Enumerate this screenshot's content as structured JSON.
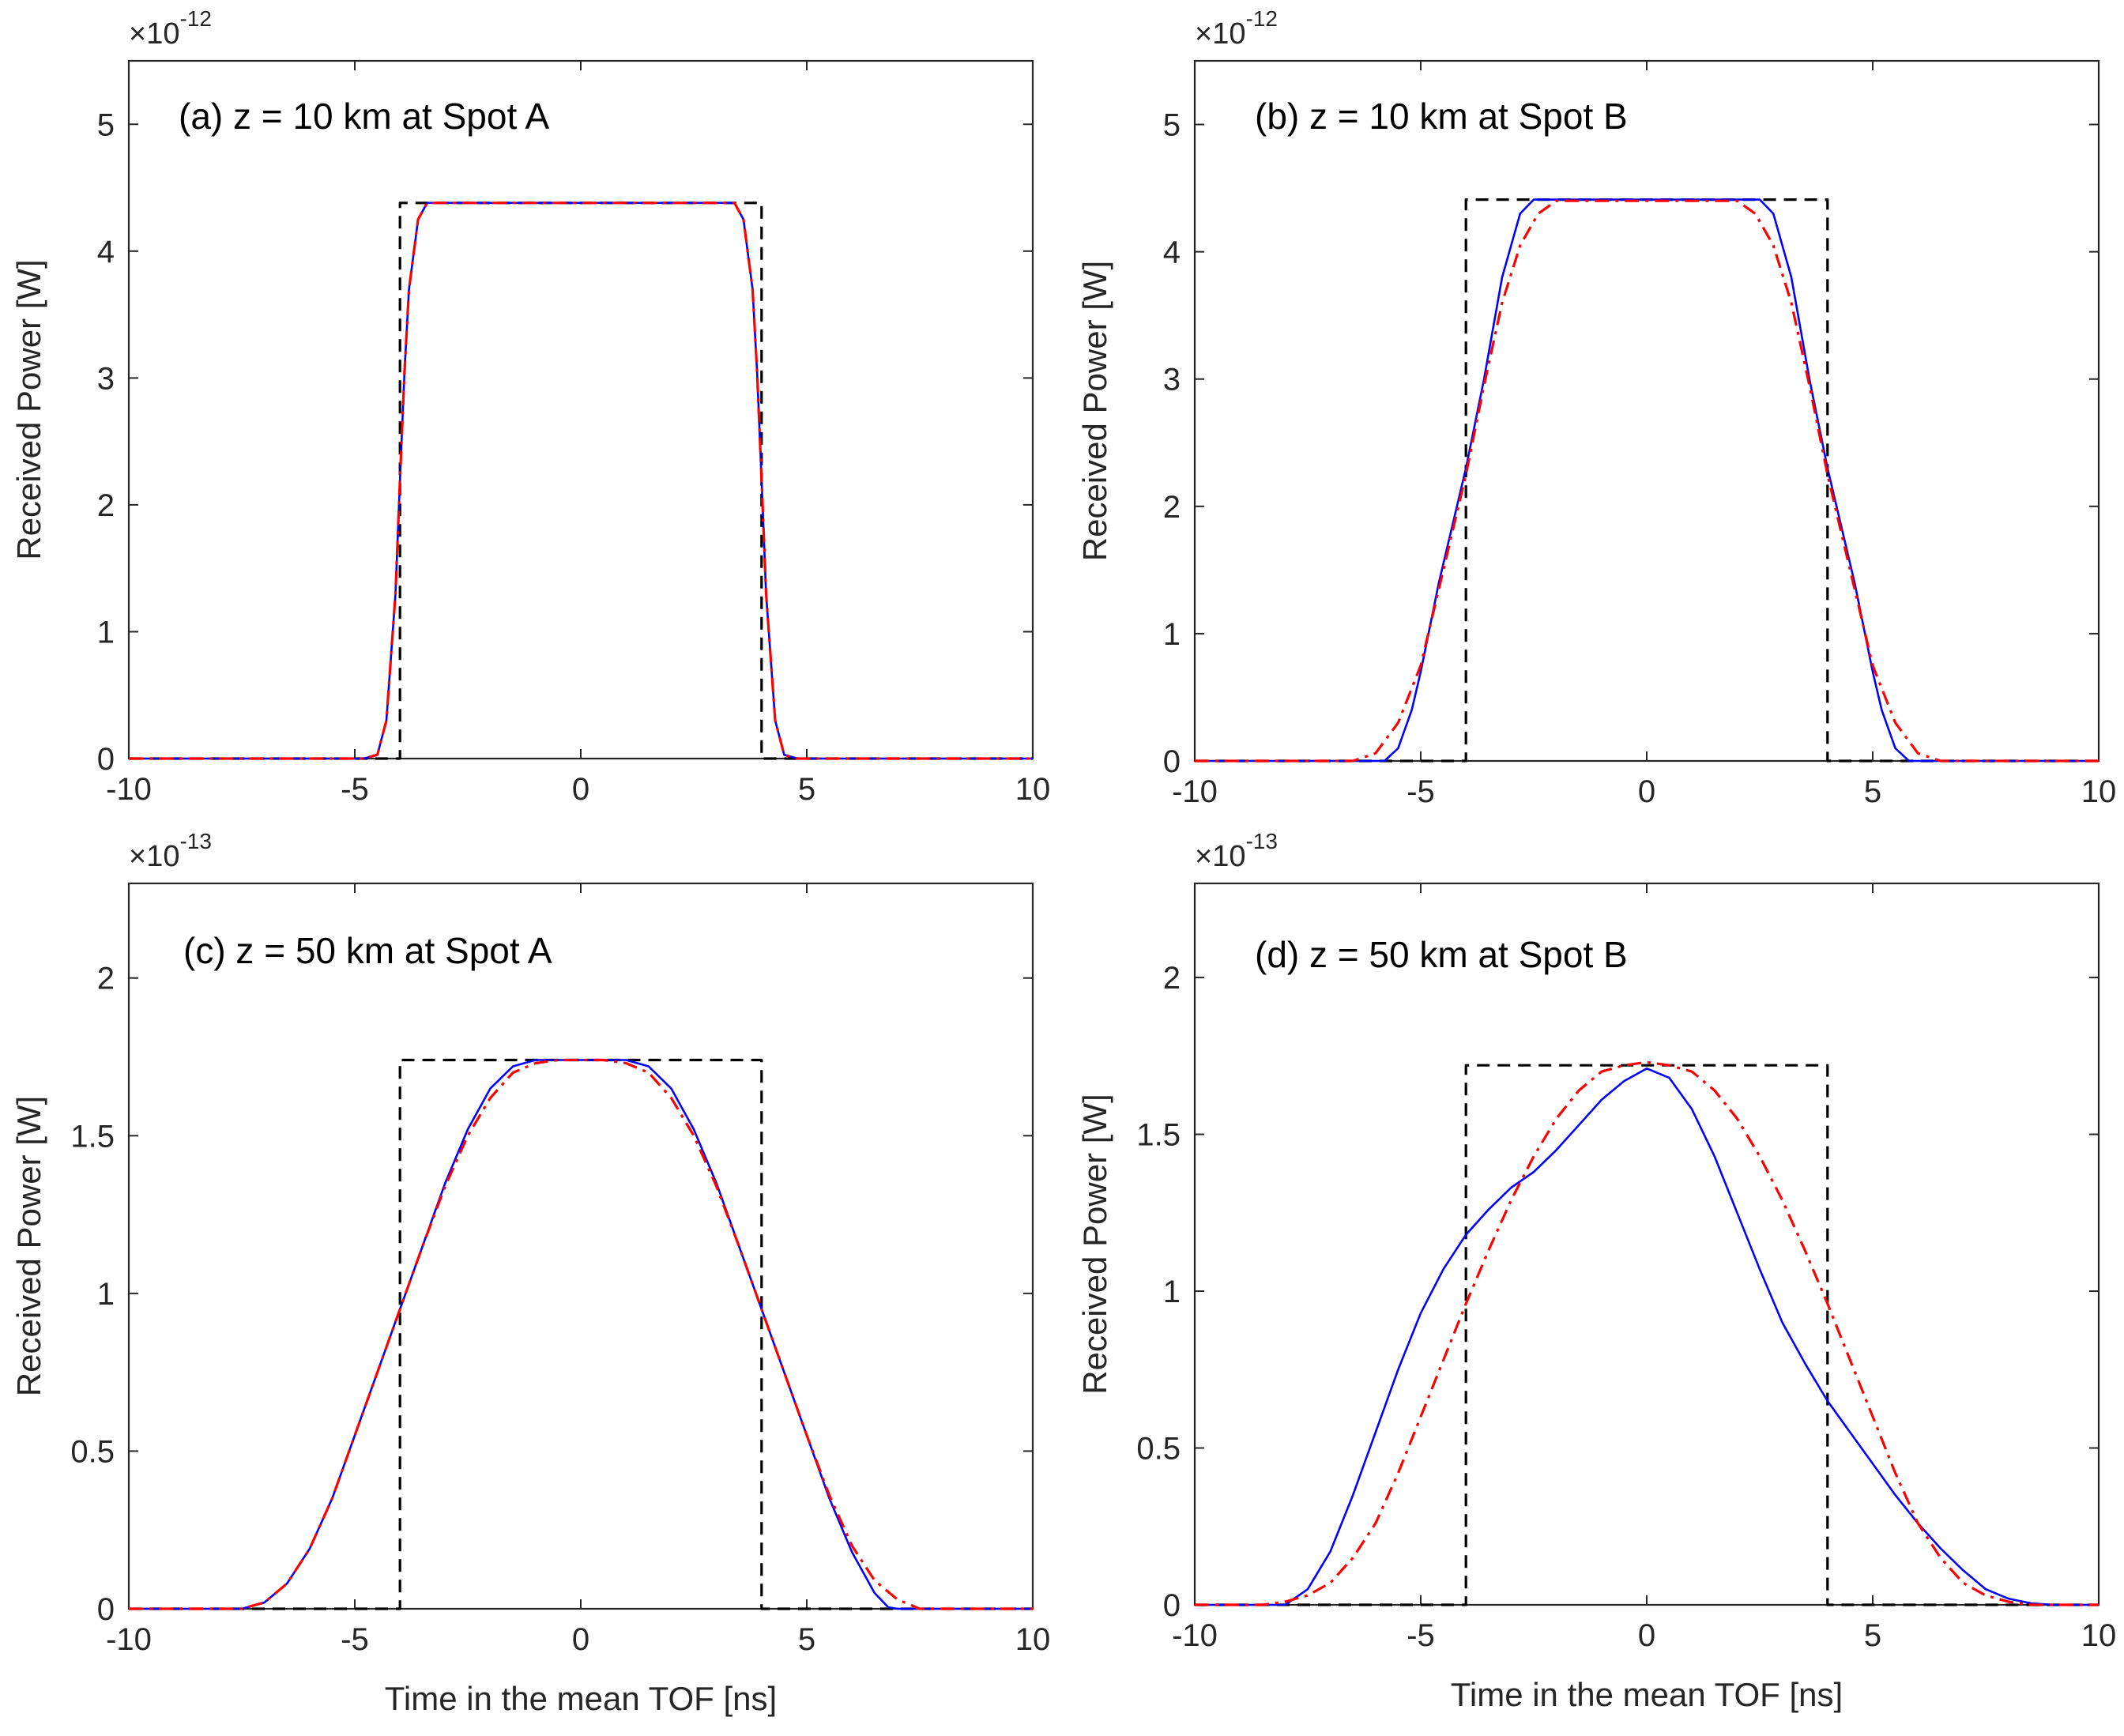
{
  "chart_data": [
    {
      "type": "line",
      "title": "(a) z = 10 km at Spot A",
      "xlabel": "",
      "ylabel": "Received Power [W]",
      "xlim": [
        -10,
        10
      ],
      "ylim": [
        0,
        5.5
      ],
      "y_multiplier": "×10",
      "y_exponent": "-12",
      "x_ticks": [
        "-10",
        "-5",
        "0",
        "5",
        "10"
      ],
      "y_ticks": [
        "0",
        "1",
        "2",
        "3",
        "4",
        "5"
      ],
      "grid": false,
      "series": [
        {
          "style": "solid",
          "color": "#0000ff",
          "x": [
            -10,
            -4.8,
            -4.5,
            -4.3,
            -4.1,
            -4.0,
            -3.9,
            -3.8,
            -3.6,
            -3.4,
            3.4,
            3.6,
            3.8,
            3.9,
            4.0,
            4.1,
            4.3,
            4.5,
            4.8,
            10
          ],
          "y": [
            0,
            0,
            0.03,
            0.3,
            1.3,
            2.2,
            3.05,
            3.7,
            4.25,
            4.38,
            4.38,
            4.25,
            3.7,
            3.05,
            2.2,
            1.3,
            0.3,
            0.03,
            0,
            0
          ]
        },
        {
          "style": "dashdot",
          "color": "#ff0000",
          "x": [
            -10,
            -4.8,
            -4.5,
            -4.3,
            -4.1,
            -4.0,
            -3.9,
            -3.8,
            -3.6,
            -3.4,
            3.4,
            3.6,
            3.8,
            3.9,
            4.0,
            4.1,
            4.3,
            4.5,
            4.8,
            10
          ],
          "y": [
            0,
            0,
            0.03,
            0.3,
            1.3,
            2.2,
            3.05,
            3.7,
            4.25,
            4.38,
            4.38,
            4.25,
            3.7,
            3.05,
            2.2,
            1.3,
            0.3,
            0.03,
            0,
            0
          ]
        },
        {
          "style": "dashed",
          "color": "#000000",
          "x": [
            -10,
            -4,
            -4,
            4,
            4,
            10
          ],
          "y": [
            0,
            0,
            4.38,
            4.38,
            0,
            0
          ]
        }
      ]
    },
    {
      "type": "line",
      "title": "(b) z = 10 km at Spot B",
      "xlabel": "",
      "ylabel": "Received Power [W]",
      "xlim": [
        -10,
        10
      ],
      "ylim": [
        0,
        5.5
      ],
      "y_multiplier": "×10",
      "y_exponent": "-12",
      "x_ticks": [
        "-10",
        "-5",
        "0",
        "5",
        "10"
      ],
      "y_ticks": [
        "0",
        "1",
        "2",
        "3",
        "4",
        "5"
      ],
      "grid": false,
      "series": [
        {
          "style": "solid",
          "color": "#0000ff",
          "x": [
            -10,
            -5.8,
            -5.5,
            -5.2,
            -5.0,
            -4.6,
            -4.2,
            -4.0,
            -3.6,
            -3.2,
            -2.8,
            -2.5,
            2.5,
            2.8,
            3.2,
            3.6,
            4.0,
            4.2,
            4.6,
            5.0,
            5.2,
            5.5,
            5.8,
            10
          ],
          "y": [
            0,
            0,
            0.1,
            0.4,
            0.7,
            1.4,
            2.0,
            2.3,
            3.0,
            3.8,
            4.3,
            4.41,
            4.41,
            4.3,
            3.8,
            3.0,
            2.3,
            2.0,
            1.4,
            0.7,
            0.4,
            0.1,
            0,
            0
          ]
        },
        {
          "style": "dashdot",
          "color": "#ff0000",
          "x": [
            -10,
            -6.5,
            -6.0,
            -5.5,
            -5.0,
            -4.6,
            -4.2,
            -4.0,
            -3.6,
            -3.2,
            -2.8,
            -2.4,
            -2.0,
            2.0,
            2.4,
            2.8,
            3.2,
            3.6,
            4.0,
            4.2,
            4.6,
            5.0,
            5.5,
            6.0,
            6.5,
            10
          ],
          "y": [
            0,
            0,
            0.06,
            0.3,
            0.75,
            1.35,
            1.95,
            2.25,
            2.95,
            3.6,
            4.05,
            4.3,
            4.4,
            4.4,
            4.3,
            4.05,
            3.6,
            2.95,
            2.25,
            1.95,
            1.35,
            0.75,
            0.3,
            0.06,
            0,
            0
          ]
        },
        {
          "style": "dashed",
          "color": "#000000",
          "x": [
            -10,
            -4,
            -4,
            4,
            4,
            10
          ],
          "y": [
            0,
            0,
            4.41,
            4.41,
            0,
            0
          ]
        }
      ]
    },
    {
      "type": "line",
      "title": "(c) z = 50 km at Spot A",
      "xlabel": "Time in the mean TOF [ns]",
      "ylabel": "Received Power [W]",
      "xlim": [
        -10,
        10
      ],
      "ylim": [
        0,
        2.3
      ],
      "y_multiplier": "×10",
      "y_exponent": "-13",
      "x_ticks": [
        "-10",
        "-5",
        "0",
        "5",
        "10"
      ],
      "y_ticks": [
        "0",
        "0.5",
        "1",
        "1.5",
        "2"
      ],
      "grid": false,
      "series": [
        {
          "style": "solid",
          "color": "#0000ff",
          "x": [
            -10,
            -7.5,
            -7.0,
            -6.5,
            -6.0,
            -5.5,
            -5.0,
            -4.5,
            -4.0,
            -3.5,
            -3.0,
            -2.5,
            -2.0,
            -1.5,
            -1.0,
            -0.5,
            0,
            0.5,
            1.0,
            1.5,
            2.0,
            2.5,
            3.0,
            3.5,
            4.0,
            4.5,
            5.0,
            5.5,
            6.0,
            6.5,
            6.8,
            7.0,
            10
          ],
          "y": [
            0,
            0,
            0.02,
            0.08,
            0.19,
            0.35,
            0.55,
            0.75,
            0.95,
            1.15,
            1.35,
            1.52,
            1.65,
            1.72,
            1.74,
            1.74,
            1.74,
            1.74,
            1.74,
            1.72,
            1.65,
            1.52,
            1.35,
            1.15,
            0.95,
            0.75,
            0.55,
            0.35,
            0.18,
            0.05,
            0.005,
            0,
            0
          ]
        },
        {
          "style": "dashdot",
          "color": "#ff0000",
          "x": [
            -10,
            -7.5,
            -7.0,
            -6.5,
            -6.0,
            -5.5,
            -5.0,
            -4.5,
            -4.0,
            -3.5,
            -3.0,
            -2.5,
            -2.0,
            -1.5,
            -1.0,
            -0.5,
            0,
            0.5,
            1.0,
            1.5,
            2.0,
            2.5,
            3.0,
            3.5,
            4.0,
            4.5,
            5.0,
            5.5,
            6.0,
            6.5,
            7.0,
            7.5,
            10
          ],
          "y": [
            0,
            0,
            0.02,
            0.08,
            0.19,
            0.35,
            0.55,
            0.75,
            0.95,
            1.15,
            1.34,
            1.5,
            1.62,
            1.7,
            1.73,
            1.74,
            1.74,
            1.74,
            1.73,
            1.7,
            1.62,
            1.5,
            1.34,
            1.15,
            0.95,
            0.75,
            0.55,
            0.36,
            0.2,
            0.09,
            0.03,
            0,
            0
          ]
        },
        {
          "style": "dashed",
          "color": "#000000",
          "x": [
            -10,
            -4,
            -4,
            4,
            4,
            10
          ],
          "y": [
            0,
            0,
            1.74,
            1.74,
            0,
            0
          ]
        }
      ]
    },
    {
      "type": "line",
      "title": "(d) z = 50 km at Spot B",
      "xlabel": "Time in the mean TOF [ns]",
      "ylabel": "Received Power [W]",
      "xlim": [
        -10,
        10
      ],
      "ylim": [
        0,
        2.3
      ],
      "y_multiplier": "×10",
      "y_exponent": "-13",
      "x_ticks": [
        "-10",
        "-5",
        "0",
        "5",
        "10"
      ],
      "y_ticks": [
        "0",
        "0.5",
        "1",
        "1.5",
        "2"
      ],
      "grid": false,
      "series": [
        {
          "style": "solid",
          "color": "#0000ff",
          "x": [
            -10,
            -8.0,
            -7.5,
            -7.0,
            -6.5,
            -6.0,
            -5.5,
            -5.0,
            -4.5,
            -4.0,
            -3.5,
            -3.0,
            -2.5,
            -2.0,
            -1.5,
            -1.0,
            -0.5,
            0,
            0.5,
            1.0,
            1.5,
            2.0,
            2.5,
            3.0,
            3.5,
            4.0,
            4.5,
            5.0,
            5.5,
            6.0,
            6.5,
            7.0,
            7.5,
            8.0,
            8.5,
            9.0,
            10
          ],
          "y": [
            0,
            0,
            0.05,
            0.17,
            0.35,
            0.55,
            0.75,
            0.93,
            1.07,
            1.18,
            1.26,
            1.33,
            1.38,
            1.45,
            1.53,
            1.61,
            1.67,
            1.71,
            1.68,
            1.58,
            1.43,
            1.25,
            1.07,
            0.9,
            0.77,
            0.65,
            0.55,
            0.45,
            0.35,
            0.26,
            0.18,
            0.11,
            0.05,
            0.02,
            0.005,
            0,
            0
          ]
        },
        {
          "style": "dashdot",
          "color": "#ff0000",
          "x": [
            -10,
            -8.5,
            -8.0,
            -7.5,
            -7.0,
            -6.5,
            -6.0,
            -5.5,
            -5.0,
            -4.5,
            -4.0,
            -3.5,
            -3.0,
            -2.5,
            -2.0,
            -1.5,
            -1.0,
            -0.5,
            0,
            0.5,
            1.0,
            1.5,
            2.0,
            2.5,
            3.0,
            3.5,
            4.0,
            4.5,
            5.0,
            5.5,
            6.0,
            6.5,
            7.0,
            7.5,
            8.0,
            8.5,
            10
          ],
          "y": [
            0,
            0,
            0.01,
            0.03,
            0.07,
            0.15,
            0.26,
            0.42,
            0.6,
            0.78,
            0.96,
            1.13,
            1.29,
            1.43,
            1.55,
            1.64,
            1.7,
            1.72,
            1.73,
            1.72,
            1.7,
            1.64,
            1.55,
            1.43,
            1.29,
            1.13,
            0.96,
            0.78,
            0.6,
            0.42,
            0.26,
            0.15,
            0.07,
            0.03,
            0.01,
            0,
            0
          ]
        },
        {
          "style": "dashed",
          "color": "#000000",
          "x": [
            -10,
            -4,
            -4,
            4,
            4,
            10
          ],
          "y": [
            0,
            0,
            1.72,
            1.72,
            0,
            0
          ]
        }
      ]
    }
  ]
}
